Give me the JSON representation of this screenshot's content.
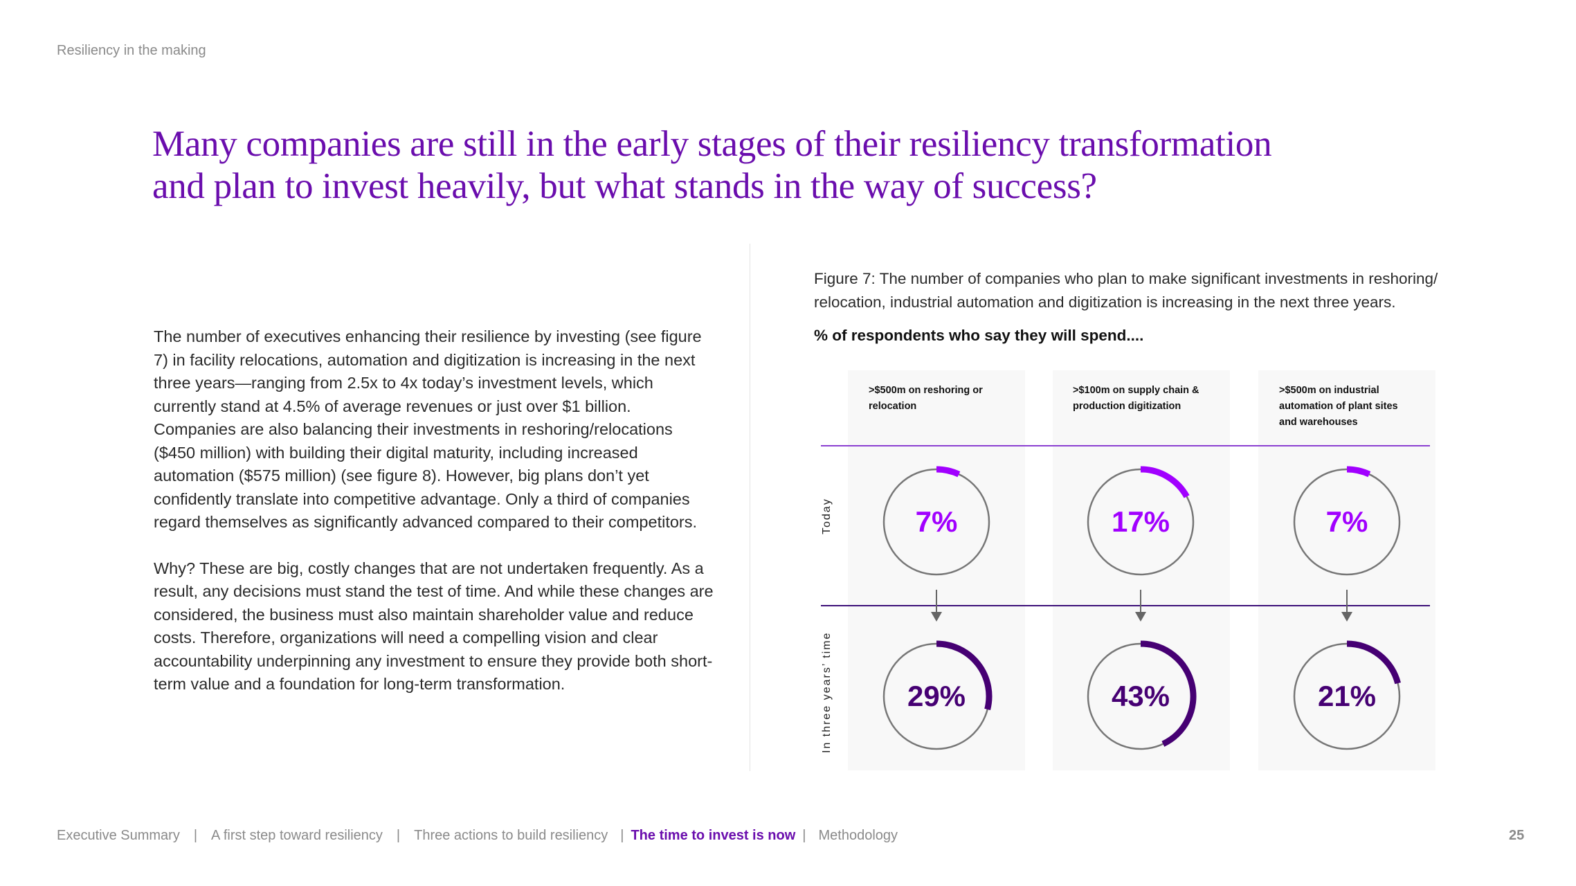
{
  "header": {
    "section_label": "Resiliency in the making"
  },
  "title": {
    "line1": "Many companies are still in the early stages of their resiliency transformation",
    "line2": "and plan to invest heavily, but what stands in the way of success?"
  },
  "body": {
    "paragraph1": "The number of executives enhancing their resilience by investing (see figure 7) in facility relocations, automation and digitization is increasing in the next three years—ranging from 2.5x to 4x today’s investment levels, which currently stand at 4.5% of average revenues or just over $1 billion. Companies are also balancing their investments in reshoring/relocations ($450 million) with building their digital maturity, including increased automation ($575 million) (see figure 8). However, big plans don’t yet confidently translate into competitive advantage. Only a third of companies regard themselves as significantly advanced compared to their competitors.",
    "paragraph2": "Why? These are big, costly changes that are not undertaken frequently. As a result, any decisions must stand the test of time. And while these changes are considered, the business must also maintain shareholder value and reduce costs. Therefore, organizations will need a compelling vision and clear accountability underpinning any investment to ensure they provide both short-term value and a foundation for long-term transformation."
  },
  "figure": {
    "caption": "Figure 7:  The number of companies who plan to make significant investments in reshoring/ relocation, industrial automation and digitization is increasing in the next three years.",
    "subtitle": "% of respondents who say they will spend...."
  },
  "chart_data": {
    "type": "donut-grid",
    "title": "Figure 7",
    "unit": "%",
    "categories": [
      ">$500m on reshoring or relocation",
      ">$100m on supply chain & production digitization",
      ">$500m on industrial automation of plant sites and warehouses"
    ],
    "rows": [
      "Today",
      "In three years’ time"
    ],
    "series": [
      {
        "name": "Today",
        "values": [
          7,
          17,
          7
        ],
        "color": "#a100ff"
      },
      {
        "name": "In three years’ time",
        "values": [
          29,
          43,
          21
        ],
        "color": "#460073"
      }
    ],
    "labels": {
      "today": [
        "7%",
        "17%",
        "7%"
      ],
      "future": [
        "29%",
        "43%",
        "21%"
      ]
    }
  },
  "footer": {
    "nav": [
      "Executive Summary",
      "A first step toward resiliency",
      "Three actions to build resiliency",
      "The time to invest is now",
      "Methodology"
    ],
    "separator": "|",
    "page_number": "25"
  },
  "colors": {
    "title": "#6a0dad",
    "accent_light": "#a100ff",
    "accent_dark": "#460073",
    "circle_stroke": "#777777"
  }
}
